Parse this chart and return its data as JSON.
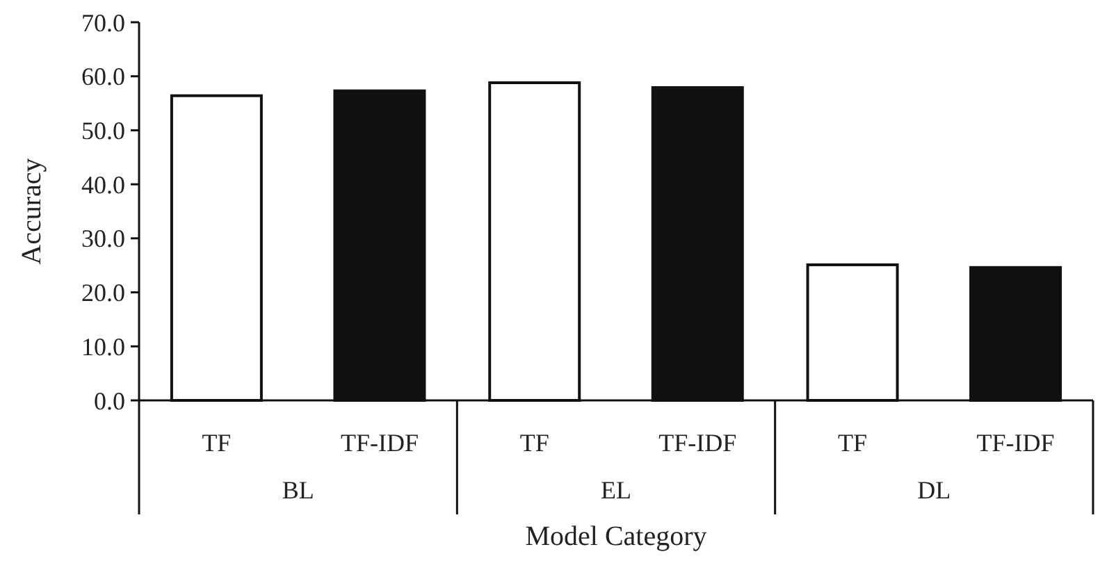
{
  "chart_data": {
    "type": "bar",
    "xlabel": "Model Category",
    "ylabel": "Accuracy",
    "categories": [
      "BL",
      "EL",
      "DL"
    ],
    "series": [
      {
        "name": "TF",
        "color": "#ffffff",
        "values": [
          56.4,
          58.8,
          25.1
        ]
      },
      {
        "name": "TF-IDF",
        "color": "#111111",
        "values": [
          57.3,
          57.9,
          24.6
        ]
      }
    ],
    "ylim": [
      0,
      70
    ],
    "yticks": [
      {
        "value": 0,
        "label": "0.0"
      },
      {
        "value": 10,
        "label": "10.0"
      },
      {
        "value": 20,
        "label": "20.0"
      },
      {
        "value": 30,
        "label": "30.0"
      },
      {
        "value": 40,
        "label": "40.0"
      },
      {
        "value": 50,
        "label": "50.0"
      },
      {
        "value": 60,
        "label": "60.0"
      },
      {
        "value": 70,
        "label": "70.0"
      }
    ],
    "grid": false
  }
}
